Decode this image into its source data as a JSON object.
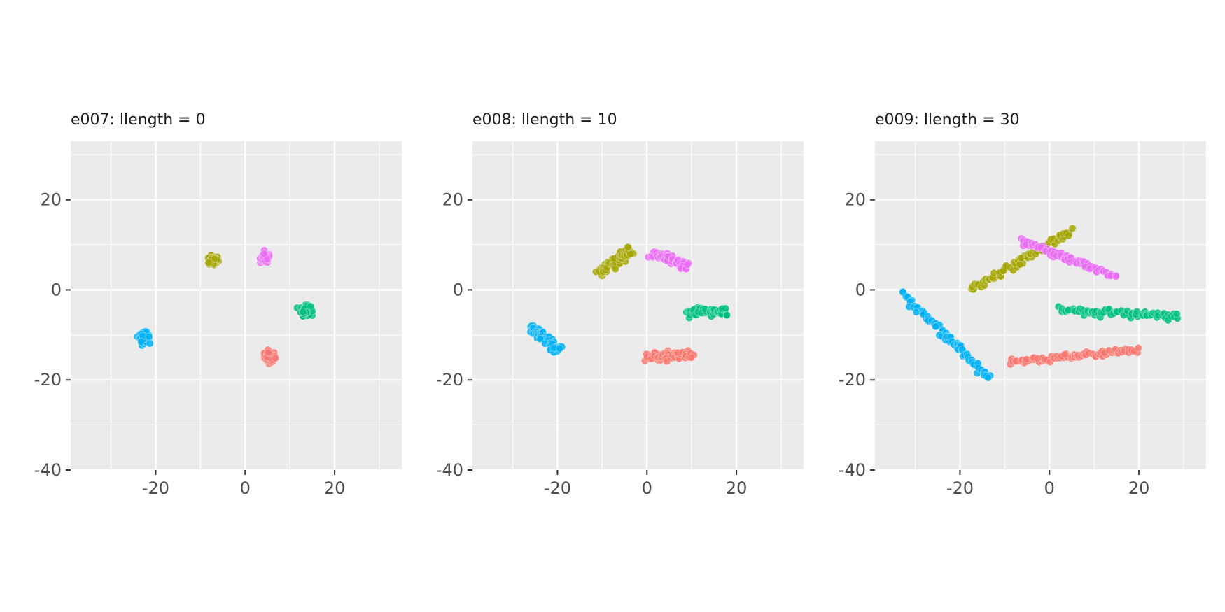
{
  "chart_data": [
    {
      "type": "scatter",
      "title": "e007: llength = 0",
      "xlim": [
        -39,
        35
      ],
      "ylim": [
        -40,
        33
      ],
      "xticks": [
        -20,
        0,
        20
      ],
      "yticks": [
        -40,
        -20,
        0,
        20
      ],
      "grid": true,
      "clusters": [
        {
          "color": "#F8766D",
          "from": [
            5.5,
            -14.8
          ],
          "to": [
            5.5,
            -14.8
          ],
          "spread": 1.0,
          "n": 80
        },
        {
          "color": "#A3A500",
          "from": [
            -7.0,
            6.5
          ],
          "to": [
            -7.0,
            6.5
          ],
          "spread": 0.9,
          "n": 80
        },
        {
          "color": "#00BF7D",
          "from": [
            13.5,
            -4.6
          ],
          "to": [
            13.5,
            -4.6
          ],
          "spread": 0.9,
          "n": 80
        },
        {
          "color": "#00B0F6",
          "from": [
            -22.5,
            -10.5
          ],
          "to": [
            -22.5,
            -10.5
          ],
          "spread": 0.9,
          "n": 80
        },
        {
          "color": "#E76BF3",
          "from": [
            4.5,
            7.0
          ],
          "to": [
            4.5,
            7.0
          ],
          "spread": 0.9,
          "n": 80
        }
      ]
    },
    {
      "type": "scatter",
      "title": "e008: llength = 10",
      "xlim": [
        -39,
        35
      ],
      "ylim": [
        -40,
        33
      ],
      "xticks": [
        -20,
        0,
        20
      ],
      "yticks": [
        -40,
        -20,
        0,
        20
      ],
      "grid": true,
      "clusters": [
        {
          "color": "#F8766D",
          "from": [
            0.0,
            -15.0
          ],
          "to": [
            10.0,
            -14.3
          ],
          "spread": 0.8,
          "n": 80
        },
        {
          "color": "#A3A500",
          "from": [
            -10.5,
            4.0
          ],
          "to": [
            -3.5,
            8.8
          ],
          "spread": 0.8,
          "n": 80
        },
        {
          "color": "#00BF7D",
          "from": [
            9.0,
            -5.0
          ],
          "to": [
            18.0,
            -4.8
          ],
          "spread": 0.9,
          "n": 80
        },
        {
          "color": "#00B0F6",
          "from": [
            -26.0,
            -8.0
          ],
          "to": [
            -19.5,
            -13.5
          ],
          "spread": 0.8,
          "n": 80
        },
        {
          "color": "#E76BF3",
          "from": [
            1.0,
            8.2
          ],
          "to": [
            8.5,
            5.3
          ],
          "spread": 0.8,
          "n": 80
        }
      ]
    },
    {
      "type": "scatter",
      "title": "e009: llength = 30",
      "xlim": [
        -39,
        35
      ],
      "ylim": [
        -40,
        33
      ],
      "xticks": [
        -20,
        0,
        20
      ],
      "yticks": [
        -40,
        -20,
        0,
        20
      ],
      "grid": true,
      "clusters": [
        {
          "color": "#F8766D",
          "from": [
            -9.0,
            -16.0
          ],
          "to": [
            19.5,
            -13.5
          ],
          "spread": 0.6,
          "n": 90
        },
        {
          "color": "#A3A500",
          "from": [
            -17.5,
            0.0
          ],
          "to": [
            4.5,
            13.0
          ],
          "spread": 0.7,
          "n": 80
        },
        {
          "color": "#00BF7D",
          "from": [
            2.0,
            -4.5
          ],
          "to": [
            28.5,
            -5.8
          ],
          "spread": 0.6,
          "n": 90
        },
        {
          "color": "#00B0F6",
          "from": [
            -32.5,
            -1.0
          ],
          "to": [
            -13.5,
            -19.5
          ],
          "spread": 0.6,
          "n": 80
        },
        {
          "color": "#E76BF3",
          "from": [
            -6.5,
            11.0
          ],
          "to": [
            14.5,
            3.0
          ],
          "spread": 0.6,
          "n": 80
        }
      ]
    }
  ]
}
